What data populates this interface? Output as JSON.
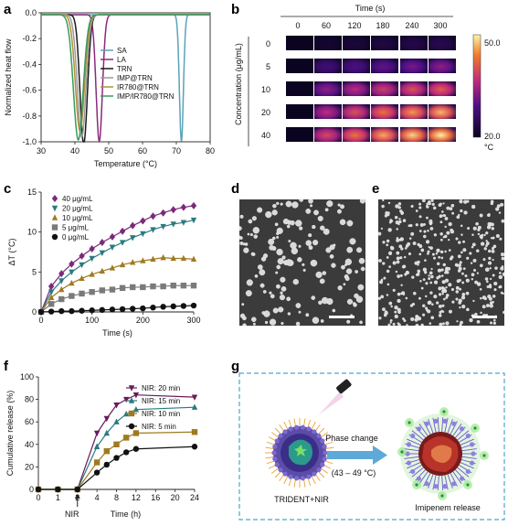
{
  "panel_labels": {
    "a": "a",
    "b": "b",
    "c": "c",
    "d": "d",
    "e": "e",
    "f": "f",
    "g": "g"
  },
  "chart_data": [
    {
      "id": "a",
      "type": "line",
      "title": "",
      "xlabel": "Temperature (°C)",
      "ylabel": "Normalized heat flow",
      "xlim": [
        30,
        80
      ],
      "ylim": [
        -1.0,
        0.0
      ],
      "xticks": [
        30,
        40,
        50,
        60,
        70,
        80
      ],
      "yticks": [
        0.0,
        -0.2,
        -0.4,
        -0.6,
        -0.8,
        -1.0
      ],
      "ytick_labels": [
        "0.0",
        "-0.2",
        "-0.4",
        "-0.6",
        "-0.8",
        "-1.0"
      ],
      "legend_position": "center-right",
      "series": [
        {
          "name": "SA",
          "color": "#5aa3b8",
          "peak_x": 71.5,
          "peak_y": -0.98,
          "width": 0.7
        },
        {
          "name": "LA",
          "color": "#8b2a7a",
          "peak_x": 47.2,
          "peak_y": -0.98,
          "width": 1.1
        },
        {
          "name": "TRN",
          "color": "#1a1a1a",
          "peak_x": 42.6,
          "peak_y": -1.0,
          "width": 1.3
        },
        {
          "name": "IMP@TRN",
          "color": "#9a9a9a",
          "peak_x": 42.0,
          "peak_y": -0.95,
          "width": 1.5
        },
        {
          "name": "IR780@TRN",
          "color": "#b0913a",
          "peak_x": 41.5,
          "peak_y": -0.9,
          "width": 1.6
        },
        {
          "name": "IMP/IR780@TRN",
          "color": "#3a9a5a",
          "peak_x": 41.0,
          "peak_y": -0.97,
          "width": 1.7
        }
      ]
    },
    {
      "id": "c",
      "type": "line",
      "title": "",
      "xlabel": "Time (s)",
      "ylabel": "ΔT (°C)",
      "xlim": [
        0,
        300
      ],
      "ylim": [
        0,
        15
      ],
      "xticks": [
        0,
        100,
        200,
        300
      ],
      "yticks": [
        0,
        5,
        10,
        15
      ],
      "legend_position": "top-left",
      "x": [
        0,
        20,
        40,
        60,
        80,
        100,
        120,
        140,
        160,
        180,
        200,
        220,
        240,
        260,
        280,
        300
      ],
      "series": [
        {
          "name": "40 μg/mL",
          "color": "#7a2a7a",
          "marker": "diamond",
          "values": [
            0,
            3.2,
            4.8,
            6.0,
            7.0,
            7.9,
            8.7,
            9.4,
            10.1,
            10.8,
            11.4,
            12.0,
            12.4,
            12.8,
            13.1,
            13.3
          ]
        },
        {
          "name": "20 μg/mL",
          "color": "#2a7a80",
          "marker": "triangle-down",
          "values": [
            0,
            2.5,
            3.9,
            5.0,
            5.9,
            6.7,
            7.4,
            8.1,
            8.7,
            9.3,
            9.8,
            10.3,
            10.7,
            11.0,
            11.2,
            11.5
          ]
        },
        {
          "name": "10 μg/mL",
          "color": "#a07a20",
          "marker": "triangle-up",
          "values": [
            0,
            1.8,
            2.8,
            3.6,
            4.2,
            4.7,
            5.1,
            5.5,
            5.9,
            6.2,
            6.4,
            6.6,
            6.8,
            6.7,
            6.7,
            6.6
          ]
        },
        {
          "name": "5 μg/mL",
          "color": "#7a7a7a",
          "marker": "square",
          "values": [
            0,
            1.0,
            1.6,
            2.0,
            2.3,
            2.5,
            2.7,
            2.8,
            3.0,
            3.1,
            3.1,
            3.2,
            3.2,
            3.3,
            3.3,
            3.3
          ]
        },
        {
          "name": "0 μg/mL",
          "color": "#111111",
          "marker": "circle",
          "values": [
            0,
            0.05,
            0.1,
            0.1,
            0.15,
            0.2,
            0.25,
            0.3,
            0.35,
            0.4,
            0.45,
            0.55,
            0.65,
            0.7,
            0.75,
            0.8
          ]
        }
      ]
    },
    {
      "id": "f",
      "type": "line",
      "title": "",
      "xlabel": "Time (h)",
      "ylabel": "Cumulative release (%)",
      "xlim": [
        0,
        24
      ],
      "ylim": [
        0,
        100
      ],
      "xticks": [
        0,
        1,
        2,
        4,
        8,
        12,
        16,
        20,
        24
      ],
      "yticks": [
        0,
        20,
        40,
        60,
        80,
        100
      ],
      "annotation": "NIR",
      "legend_position": "right",
      "x": [
        0,
        1,
        2,
        4,
        6,
        8,
        10,
        12,
        24
      ],
      "series": [
        {
          "name": "NIR: 20 min",
          "color": "#6a1a5a",
          "marker": "triangle-down",
          "values": [
            0,
            0,
            0,
            50,
            63,
            75,
            80,
            84,
            82
          ]
        },
        {
          "name": "NIR: 15 min",
          "color": "#2a7a80",
          "marker": "triangle-up",
          "values": [
            0,
            0,
            0,
            38,
            50,
            60,
            67,
            71,
            73
          ]
        },
        {
          "name": "NIR: 10 min",
          "color": "#a07a20",
          "marker": "square",
          "values": [
            0,
            0,
            0,
            24,
            34,
            40,
            46,
            50,
            51
          ]
        },
        {
          "name": "NIR: 5 min",
          "color": "#111111",
          "marker": "circle",
          "values": [
            0,
            0,
            0,
            15,
            22,
            28,
            33,
            36,
            38
          ]
        }
      ]
    }
  ],
  "panel_b": {
    "time_title": "Time (s)",
    "times": [
      "0",
      "60",
      "120",
      "180",
      "240",
      "300"
    ],
    "conc_label": "Concentration (μg/mL)",
    "concentrations": [
      "0",
      "5",
      "10",
      "20",
      "40"
    ],
    "colorbar_max": "50.0",
    "colorbar_min": "20.0",
    "colorbar_unit": "°C",
    "intensity": [
      [
        0.0,
        0.05,
        0.08,
        0.1,
        0.12,
        0.14
      ],
      [
        0.0,
        0.25,
        0.3,
        0.35,
        0.4,
        0.45
      ],
      [
        0.0,
        0.45,
        0.55,
        0.62,
        0.68,
        0.72
      ],
      [
        0.0,
        0.55,
        0.68,
        0.78,
        0.85,
        0.9
      ],
      [
        0.0,
        0.65,
        0.78,
        0.88,
        0.95,
        1.0
      ]
    ]
  },
  "panel_g": {
    "trident_label": "TRIDENT+NIR",
    "phase_label": "Phase change",
    "temp_label": "(43 – 49 °C)",
    "release_label": "Imipenem release"
  }
}
